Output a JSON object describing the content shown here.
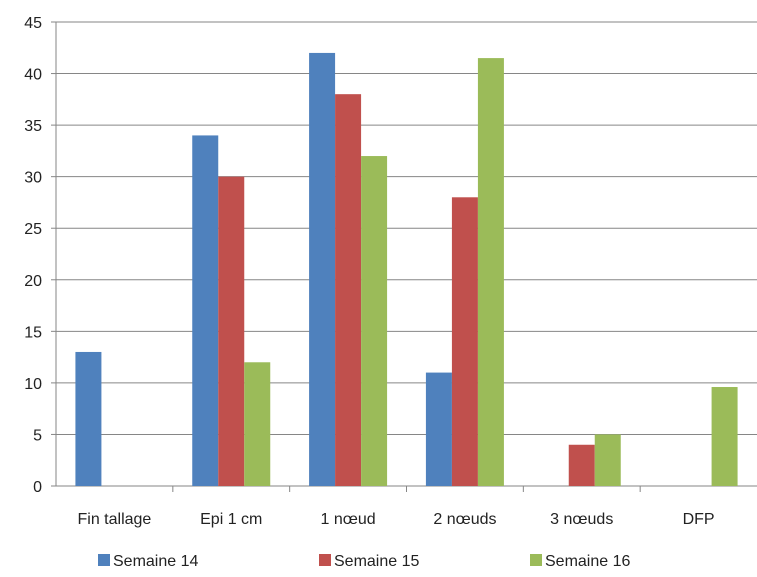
{
  "chart_data": {
    "type": "bar",
    "categories": [
      "Fin tallage",
      "Epi 1 cm",
      "1 nœud",
      "2 nœuds",
      "3 nœuds",
      "DFP"
    ],
    "series": [
      {
        "name": "Semaine 14",
        "color": "#4f81bd",
        "values": [
          13,
          34,
          42,
          11,
          0,
          0
        ]
      },
      {
        "name": "Semaine 15",
        "color": "#c0504d",
        "values": [
          0,
          30,
          38,
          28,
          4,
          0
        ]
      },
      {
        "name": "Semaine 16",
        "color": "#9bbb59",
        "values": [
          0,
          12,
          32,
          41.5,
          5,
          9.6
        ]
      }
    ],
    "ylim": [
      0,
      45
    ],
    "yticks": [
      0,
      5,
      10,
      15,
      20,
      25,
      30,
      35,
      40,
      45
    ],
    "grid": true,
    "legend_position": "bottom",
    "title": "",
    "xlabel": "",
    "ylabel": ""
  }
}
